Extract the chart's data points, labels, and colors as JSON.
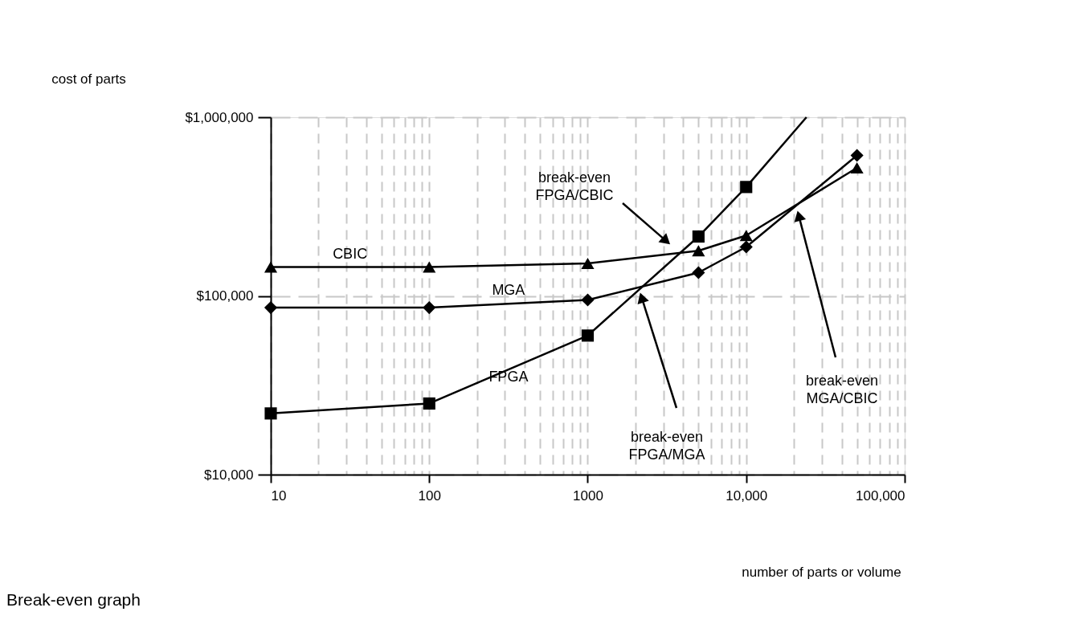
{
  "chart_data": {
    "type": "line",
    "title": "Break-even graph",
    "xlabel": "number of parts or volume",
    "ylabel": "cost of parts",
    "log": "xy",
    "grid": true,
    "xlim": [
      10,
      100000
    ],
    "ylim": [
      10000,
      1000000
    ],
    "xticks": [
      10,
      {
        "value": 20,
        "label": null
      },
      {
        "value": 30,
        "label": null
      },
      {
        "value": 40,
        "label": null
      },
      {
        "value": 50,
        "label": null
      },
      {
        "value": 60,
        "label": null
      },
      {
        "value": 70,
        "label": null
      },
      {
        "value": 80,
        "label": null
      },
      {
        "value": 90,
        "label": null
      },
      100,
      {
        "value": 200,
        "label": null
      },
      {
        "value": 300,
        "label": null
      },
      {
        "value": 400,
        "label": null
      },
      {
        "value": 500,
        "label": null
      },
      {
        "value": 600,
        "label": null
      },
      {
        "value": 700,
        "label": null
      },
      {
        "value": 800,
        "label": null
      },
      {
        "value": 900,
        "label": null
      },
      1000,
      {
        "value": 2000,
        "label": null
      },
      {
        "value": 3000,
        "label": null
      },
      {
        "value": 4000,
        "label": null
      },
      {
        "value": 5000,
        "label": null
      },
      {
        "value": 6000,
        "label": null
      },
      {
        "value": 7000,
        "label": null
      },
      {
        "value": 8000,
        "label": null
      },
      {
        "value": 9000,
        "label": null
      },
      {
        "value": 10000,
        "label": "10,000"
      },
      {
        "value": 20000,
        "label": null
      },
      {
        "value": 30000,
        "label": null
      },
      {
        "value": 40000,
        "label": null
      },
      {
        "value": 50000,
        "label": null
      },
      {
        "value": 60000,
        "label": null
      },
      {
        "value": 70000,
        "label": null
      },
      {
        "value": 80000,
        "label": null
      },
      {
        "value": 90000,
        "label": null
      },
      {
        "value": 100000,
        "label": "100,000"
      }
    ],
    "yticks": [
      {
        "value": 10000,
        "label": "$10,000"
      },
      {
        "value": 100000,
        "label": "$100,000"
      },
      {
        "value": 1000000,
        "label": "$1,000,000"
      }
    ],
    "x": [
      10,
      100,
      1000,
      5000,
      10000,
      50000
    ],
    "series": [
      {
        "name": "CBIC",
        "color": "#000000",
        "marker": "triangle",
        "values": [
          145000,
          145000,
          152000,
          179000,
          218000,
          521000
        ]
      },
      {
        "name": "MGA",
        "color": "#000000",
        "marker": "diamond",
        "values": [
          86000,
          86000,
          95000,
          135000,
          188000,
          612000
        ]
      },
      {
        "name": "FPGA",
        "color": "#000000",
        "marker": "square",
        "values": [
          22000,
          25000,
          60000,
          215000,
          407000,
          null
        ]
      },
      {
        "color": "#000000",
        "marker": "none",
        "x": [
          10000,
          24000
        ],
        "values": [
          407000,
          1000000
        ]
      }
    ],
    "annotations": [
      "break-even FPGA/CBIC",
      "break-even FPGA/MGA",
      "break-even MGA/CBIC"
    ]
  }
}
